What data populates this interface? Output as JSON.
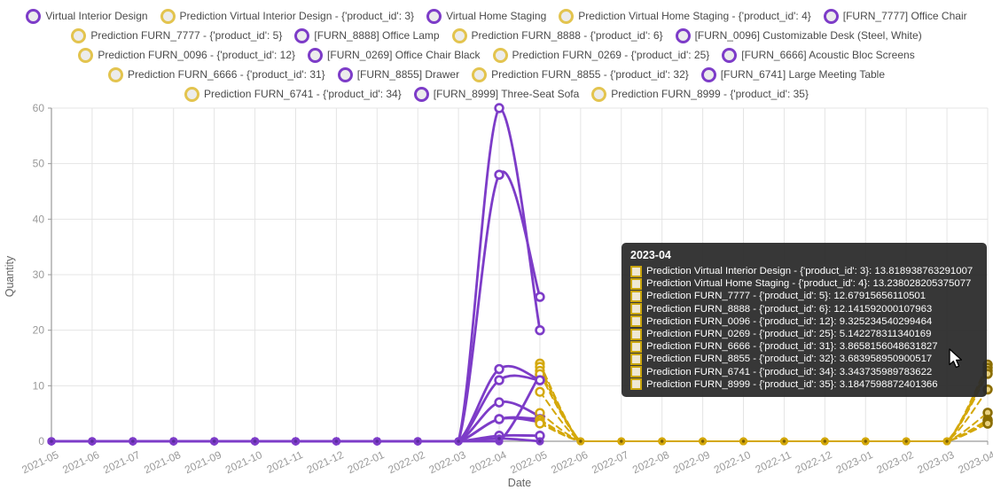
{
  "palette": {
    "actual_line": "#7D3CC8",
    "actual_dark": "#5A2B9D",
    "prediction_line": "#D4A80A",
    "prediction_dark": "#7A5F04",
    "prediction_hover_stroke": "#8A6D00",
    "prediction_hover_fill": "#E8D07E",
    "grid": "#E4E4E4",
    "axis": "#9A9A9A",
    "tick_text": "#999999",
    "legend_text": "#4a4a4a"
  },
  "legend": {
    "rows": [
      [
        {
          "label": "Virtual Interior Design",
          "type": "actual"
        },
        {
          "label": "Prediction Virtual Interior Design - {'product_id': 3}",
          "type": "prediction"
        },
        {
          "label": "Virtual Home Staging",
          "type": "actual"
        },
        {
          "label": "Prediction Virtual Home Staging - {'product_id': 4}",
          "type": "prediction"
        },
        {
          "label": "[FURN_7777] Office Chair",
          "type": "actual"
        }
      ],
      [
        {
          "label": "Prediction FURN_7777 - {'product_id': 5}",
          "type": "prediction"
        },
        {
          "label": "[FURN_8888] Office Lamp",
          "type": "actual"
        },
        {
          "label": "Prediction FURN_8888 - {'product_id': 6}",
          "type": "prediction"
        },
        {
          "label": "[FURN_0096] Customizable Desk (Steel, White)",
          "type": "actual"
        }
      ],
      [
        {
          "label": "Prediction FURN_0096 - {'product_id': 12}",
          "type": "prediction"
        },
        {
          "label": "[FURN_0269] Office Chair Black",
          "type": "actual"
        },
        {
          "label": "Prediction FURN_0269 - {'product_id': 25}",
          "type": "prediction"
        },
        {
          "label": "[FURN_6666] Acoustic Bloc Screens",
          "type": "actual"
        }
      ],
      [
        {
          "label": "Prediction FURN_6666 - {'product_id': 31}",
          "type": "prediction"
        },
        {
          "label": "[FURN_8855] Drawer",
          "type": "actual"
        },
        {
          "label": "Prediction FURN_8855 - {'product_id': 32}",
          "type": "prediction"
        },
        {
          "label": "[FURN_6741] Large Meeting Table",
          "type": "actual"
        }
      ],
      [
        {
          "label": "Prediction FURN_6741 - {'product_id': 34}",
          "type": "prediction"
        },
        {
          "label": "[FURN_8999] Three-Seat Sofa",
          "type": "actual"
        },
        {
          "label": "Prediction FURN_8999 - {'product_id': 35}",
          "type": "prediction"
        }
      ]
    ]
  },
  "chart_data": {
    "type": "line",
    "title": "",
    "xlabel": "Date",
    "ylabel": "Quantity",
    "ylim": [
      0,
      60
    ],
    "yticks": [
      0,
      10,
      20,
      30,
      40,
      50,
      60
    ],
    "grid": true,
    "categories": [
      "2021-05",
      "2021-06",
      "2021-07",
      "2021-08",
      "2021-09",
      "2021-10",
      "2021-11",
      "2021-12",
      "2022-01",
      "2022-02",
      "2022-03",
      "2022-04",
      "2022-05",
      "2022-06",
      "2022-07",
      "2022-08",
      "2022-09",
      "2022-10",
      "2022-11",
      "2022-12",
      "2023-01",
      "2023-02",
      "2023-03",
      "2023-04"
    ],
    "series": [
      {
        "name": "Virtual Interior Design",
        "kind": "actual",
        "values": [
          0,
          0,
          0,
          0,
          0,
          0,
          0,
          0,
          0,
          0,
          0,
          60,
          20,
          null,
          null,
          null,
          null,
          null,
          null,
          null,
          null,
          null,
          null,
          null
        ]
      },
      {
        "name": "Prediction Virtual Interior Design - {'product_id': 3}",
        "kind": "prediction",
        "values": [
          null,
          null,
          null,
          null,
          null,
          null,
          null,
          null,
          null,
          null,
          null,
          null,
          14,
          0,
          0,
          0,
          0,
          0,
          0,
          0,
          0,
          0,
          0,
          13.818938763291007
        ]
      },
      {
        "name": "Virtual Home Staging",
        "kind": "actual",
        "values": [
          0,
          0,
          0,
          0,
          0,
          0,
          0,
          0,
          0,
          0,
          0,
          48,
          26,
          null,
          null,
          null,
          null,
          null,
          null,
          null,
          null,
          null,
          null,
          null
        ]
      },
      {
        "name": "Prediction Virtual Home Staging - {'product_id': 4}",
        "kind": "prediction",
        "values": [
          null,
          null,
          null,
          null,
          null,
          null,
          null,
          null,
          null,
          null,
          null,
          null,
          13.4,
          0,
          0,
          0,
          0,
          0,
          0,
          0,
          0,
          0,
          0,
          13.238028205375077
        ]
      },
      {
        "name": "[FURN_7777] Office Chair",
        "kind": "actual",
        "values": [
          0,
          0,
          0,
          0,
          0,
          0,
          0,
          0,
          0,
          0,
          0,
          13,
          11,
          null,
          null,
          null,
          null,
          null,
          null,
          null,
          null,
          null,
          null,
          null
        ]
      },
      {
        "name": "Prediction FURN_7777 - {'product_id': 5}",
        "kind": "prediction",
        "values": [
          null,
          null,
          null,
          null,
          null,
          null,
          null,
          null,
          null,
          null,
          null,
          null,
          12.7,
          0,
          0,
          0,
          0,
          0,
          0,
          0,
          0,
          0,
          0,
          12.67915656110501
        ]
      },
      {
        "name": "[FURN_8888] Office Lamp",
        "kind": "actual",
        "values": [
          0,
          0,
          0,
          0,
          0,
          0,
          0,
          0,
          0,
          0,
          0,
          0,
          12,
          null,
          null,
          null,
          null,
          null,
          null,
          null,
          null,
          null,
          null,
          null
        ]
      },
      {
        "name": "Prediction FURN_8888 - {'product_id': 6}",
        "kind": "prediction",
        "values": [
          null,
          null,
          null,
          null,
          null,
          null,
          null,
          null,
          null,
          null,
          null,
          null,
          12.1,
          0,
          0,
          0,
          0,
          0,
          0,
          0,
          0,
          0,
          0,
          12.141592000107963
        ]
      },
      {
        "name": "[FURN_0096] Customizable Desk (Steel, White)",
        "kind": "actual",
        "values": [
          0,
          0,
          0,
          0,
          0,
          0,
          0,
          0,
          0,
          0,
          0,
          11,
          11,
          null,
          null,
          null,
          null,
          null,
          null,
          null,
          null,
          null,
          null,
          null
        ]
      },
      {
        "name": "Prediction FURN_0096 - {'product_id': 12}",
        "kind": "prediction",
        "values": [
          null,
          null,
          null,
          null,
          null,
          null,
          null,
          null,
          null,
          null,
          null,
          null,
          8.9,
          0,
          0,
          0,
          0,
          0,
          0,
          0,
          0,
          0,
          0,
          9.325234540299464
        ]
      },
      {
        "name": "[FURN_0269] Office Chair Black",
        "kind": "actual",
        "values": [
          0,
          0,
          0,
          0,
          0,
          0,
          0,
          0,
          0,
          0,
          0,
          7,
          4.5,
          null,
          null,
          null,
          null,
          null,
          null,
          null,
          null,
          null,
          null,
          null
        ]
      },
      {
        "name": "Prediction FURN_0269 - {'product_id': 25}",
        "kind": "prediction",
        "values": [
          null,
          null,
          null,
          null,
          null,
          null,
          null,
          null,
          null,
          null,
          null,
          null,
          5.1,
          0,
          0,
          0,
          0,
          0,
          0,
          0,
          0,
          0,
          0,
          5.142278311340169
        ]
      },
      {
        "name": "[FURN_6666] Acoustic Bloc Screens",
        "kind": "actual",
        "values": [
          0,
          0,
          0,
          0,
          0,
          0,
          0,
          0,
          0,
          0,
          0,
          4,
          4,
          null,
          null,
          null,
          null,
          null,
          null,
          null,
          null,
          null,
          null,
          null
        ]
      },
      {
        "name": "Prediction FURN_6666 - {'product_id': 31}",
        "kind": "prediction",
        "values": [
          null,
          null,
          null,
          null,
          null,
          null,
          null,
          null,
          null,
          null,
          null,
          null,
          3.9,
          0,
          0,
          0,
          0,
          0,
          0,
          0,
          0,
          0,
          0,
          3.8658156048631827
        ]
      },
      {
        "name": "[FURN_8855] Drawer",
        "kind": "actual",
        "values": [
          0,
          0,
          0,
          0,
          0,
          0,
          0,
          0,
          0,
          0,
          0,
          4,
          3.5,
          null,
          null,
          null,
          null,
          null,
          null,
          null,
          null,
          null,
          null,
          null
        ]
      },
      {
        "name": "Prediction FURN_8855 - {'product_id': 32}",
        "kind": "prediction",
        "values": [
          null,
          null,
          null,
          null,
          null,
          null,
          null,
          null,
          null,
          null,
          null,
          null,
          3.7,
          0,
          0,
          0,
          0,
          0,
          0,
          0,
          0,
          0,
          0,
          3.683958950900517
        ]
      },
      {
        "name": "[FURN_6741] Large Meeting Table",
        "kind": "actual",
        "values": [
          0,
          0,
          0,
          0,
          0,
          0,
          0,
          0,
          0,
          0,
          0,
          1,
          1,
          null,
          null,
          null,
          null,
          null,
          null,
          null,
          null,
          null,
          null,
          null
        ]
      },
      {
        "name": "Prediction FURN_6741 - {'product_id': 34}",
        "kind": "prediction",
        "values": [
          null,
          null,
          null,
          null,
          null,
          null,
          null,
          null,
          null,
          null,
          null,
          null,
          3.3,
          0,
          0,
          0,
          0,
          0,
          0,
          0,
          0,
          0,
          0,
          3.343735989783622
        ]
      },
      {
        "name": "[FURN_8999] Three-Seat Sofa",
        "kind": "actual",
        "values": [
          0,
          0,
          0,
          0,
          0,
          0,
          0,
          0,
          0,
          0,
          0,
          0.5,
          0,
          null,
          null,
          null,
          null,
          null,
          null,
          null,
          null,
          null,
          null,
          null
        ]
      },
      {
        "name": "Prediction FURN_8999 - {'product_id': 35}",
        "kind": "prediction",
        "values": [
          null,
          null,
          null,
          null,
          null,
          null,
          null,
          null,
          null,
          null,
          null,
          null,
          3.2,
          0,
          0,
          0,
          0,
          0,
          0,
          0,
          0,
          0,
          0,
          3.1847598872401366
        ]
      }
    ]
  },
  "tooltip": {
    "title": "2023-04",
    "rows": [
      {
        "text": "Prediction Virtual Interior Design - {'product_id': 3}: 13.818938763291007"
      },
      {
        "text": "Prediction Virtual Home Staging - {'product_id': 4}: 13.238028205375077"
      },
      {
        "text": "Prediction FURN_7777 - {'product_id': 5}: 12.67915656110501"
      },
      {
        "text": "Prediction FURN_8888 - {'product_id': 6}: 12.141592000107963"
      },
      {
        "text": "Prediction FURN_0096 - {'product_id': 12}: 9.325234540299464"
      },
      {
        "text": "Prediction FURN_0269 - {'product_id': 25}: 5.142278311340169"
      },
      {
        "text": "Prediction FURN_6666 - {'product_id': 31}: 3.8658156048631827"
      },
      {
        "text": "Prediction FURN_8855 - {'product_id': 32}: 3.683958950900517"
      },
      {
        "text": "Prediction FURN_6741 - {'product_id': 34}: 3.343735989783622"
      },
      {
        "text": "Prediction FURN_8999 - {'product_id': 35}: 3.1847598872401366"
      }
    ]
  }
}
